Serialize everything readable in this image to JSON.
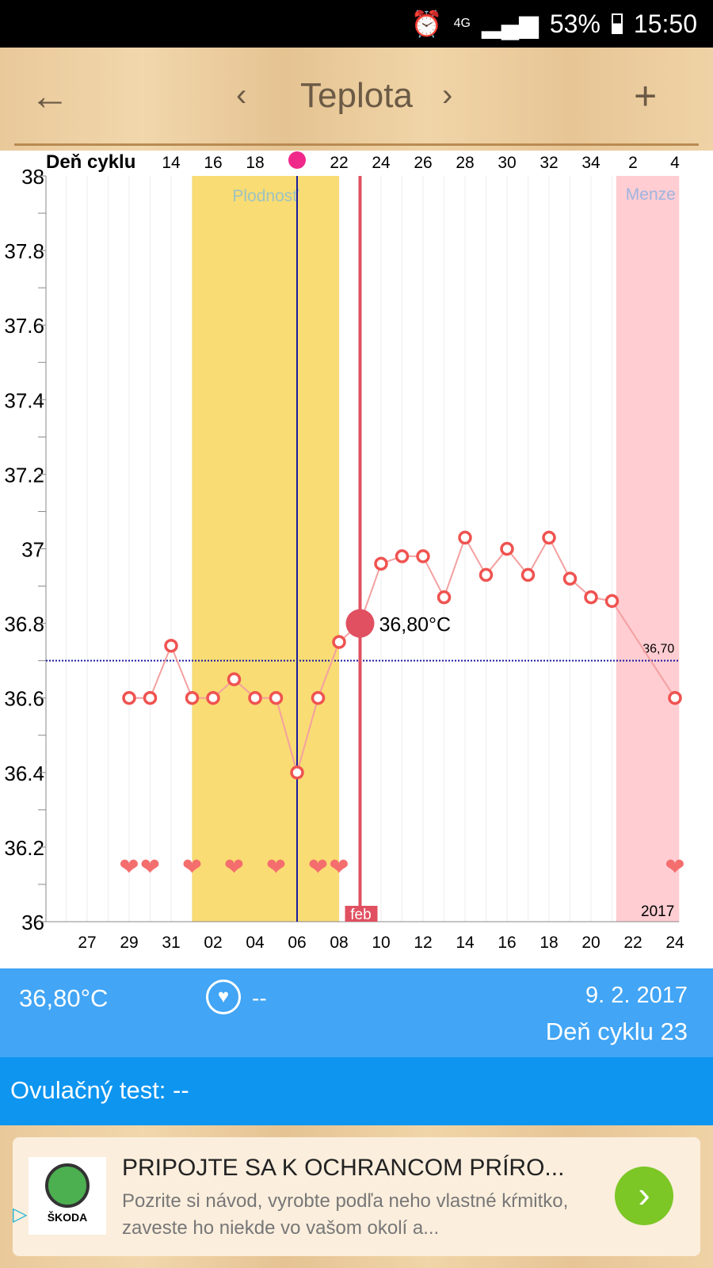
{
  "status": {
    "icons": [
      "alarm-icon",
      "4g-icon",
      "signal-icon"
    ],
    "battery": "53%",
    "time": "15:50"
  },
  "appbar": {
    "title": "Teplota",
    "back_icon": "arrow-left-icon",
    "prev_icon": "chevron-left-icon",
    "next_icon": "chevron-right-icon",
    "add_icon": "plus-icon"
  },
  "chart_data": {
    "type": "line",
    "title": "Teplota",
    "ylim": [
      36,
      38
    ],
    "yticks": [
      "36",
      "36.2",
      "36.4",
      "36.6",
      "36.8",
      "37",
      "37.2",
      "37.4",
      "37.6",
      "37.8",
      "38"
    ],
    "x_start_index": -2,
    "x_end_index": 28.2,
    "xticks": [
      {
        "i": 0,
        "label": "27"
      },
      {
        "i": 2,
        "label": "29"
      },
      {
        "i": 4,
        "label": "31"
      },
      {
        "i": 6,
        "label": "02"
      },
      {
        "i": 8,
        "label": "04"
      },
      {
        "i": 10,
        "label": "06"
      },
      {
        "i": 12,
        "label": "08"
      },
      {
        "i": 14,
        "label": "10"
      },
      {
        "i": 16,
        "label": "12"
      },
      {
        "i": 18,
        "label": "14"
      },
      {
        "i": 20,
        "label": "16"
      },
      {
        "i": 22,
        "label": "18"
      },
      {
        "i": 24,
        "label": "20"
      },
      {
        "i": 26,
        "label": "22"
      },
      {
        "i": 28,
        "label": "24"
      }
    ],
    "cycle_label": "Deň cyklu",
    "cycle_ticks": [
      {
        "i": 4,
        "label": "14"
      },
      {
        "i": 6,
        "label": "16"
      },
      {
        "i": 8,
        "label": "18"
      },
      {
        "i": 12,
        "label": "22"
      },
      {
        "i": 14,
        "label": "24"
      },
      {
        "i": 16,
        "label": "26"
      },
      {
        "i": 18,
        "label": "28"
      },
      {
        "i": 20,
        "label": "30"
      },
      {
        "i": 22,
        "label": "32"
      },
      {
        "i": 24,
        "label": "34"
      },
      {
        "i": 26,
        "label": "2"
      },
      {
        "i": 28,
        "label": "4"
      }
    ],
    "ovulation_index": 10,
    "points": [
      [
        2,
        36.6
      ],
      [
        3,
        36.6
      ],
      [
        4,
        36.74
      ],
      [
        5,
        36.6
      ],
      [
        6,
        36.6
      ],
      [
        7,
        36.65
      ],
      [
        8,
        36.6
      ],
      [
        9,
        36.6
      ],
      [
        10,
        36.4
      ],
      [
        11,
        36.6
      ],
      [
        12,
        36.75
      ],
      [
        13,
        36.8
      ],
      [
        14,
        36.96
      ],
      [
        15,
        36.98
      ],
      [
        16,
        36.98
      ],
      [
        17,
        36.87
      ],
      [
        18,
        37.03
      ],
      [
        19,
        36.93
      ],
      [
        20,
        37.0
      ],
      [
        21,
        36.93
      ],
      [
        22,
        37.03
      ],
      [
        23,
        36.92
      ],
      [
        24,
        36.87
      ],
      [
        25,
        36.86
      ],
      [
        28,
        36.6
      ]
    ],
    "selected_index": 13,
    "selected_label": "36,80°C",
    "hearts": [
      2,
      3,
      5,
      7,
      9,
      11,
      12,
      28
    ],
    "fertile": {
      "from": 5,
      "to": 12,
      "label": "Plodnosť"
    },
    "menses": {
      "from": 25.2,
      "to": 28.2,
      "label": "Menze"
    },
    "coverline": {
      "value": 36.7,
      "label": "36,70"
    },
    "month_label": "feb",
    "year_label": "2017",
    "colors": {
      "line": "#f4a0a0",
      "point": "#ef5350",
      "fertile": "#f9dc74",
      "menses": "#ffcdd2",
      "selected": "#e05060",
      "coverline": "#1a1aa0"
    }
  },
  "info": {
    "temperature": "36,80°C",
    "heart_icon": "heart-circle-icon",
    "intercourse": "--",
    "date": "9. 2. 2017",
    "cycle_day": "Deň cyklu 23"
  },
  "ovulation_test": "Ovulačný test: --",
  "ad": {
    "brand": "ŠKODA",
    "headline": "PRIPOJTE SA K OCHRANCOM PRÍRO...",
    "body": "Pozrite si návod, vyrobte podľa neho vlastné kŕmitko, zaveste ho niekde vo vašom okolí a...",
    "cta_icon": "chevron-right-icon",
    "adchoices_icon": "adchoices-icon"
  }
}
